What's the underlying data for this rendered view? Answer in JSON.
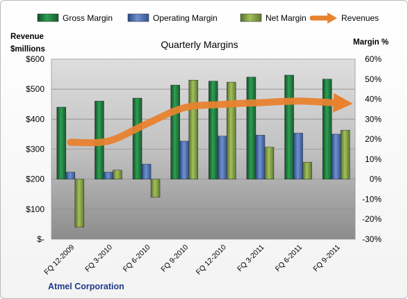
{
  "chart_data": {
    "type": "bar",
    "title": "Quarterly Margins",
    "categories": [
      "FQ 12-2009",
      "FQ 3-2010",
      "FQ 6-2010",
      "FQ 9-2010",
      "FQ 12-2010",
      "FQ 3-2011",
      "FQ 6-2011",
      "FQ 9-2011"
    ],
    "series": [
      {
        "name": "Gross Margin",
        "type": "bar",
        "axis": "right",
        "color": "#1f7a3c",
        "values": [
          36,
          39,
          40.5,
          47,
          49,
          51,
          52,
          50
        ]
      },
      {
        "name": "Operating Margin",
        "type": "bar",
        "axis": "right",
        "color": "#4a6fb0",
        "values": [
          3.5,
          3.5,
          7.5,
          19,
          21.5,
          22,
          23,
          22.5
        ]
      },
      {
        "name": "Net Margin",
        "type": "bar",
        "axis": "right",
        "color": "#7f9b3b",
        "values": [
          -24,
          4.5,
          -9,
          49.5,
          48.5,
          16,
          8.5,
          24.5
        ]
      },
      {
        "name": "Revenues",
        "type": "line",
        "axis": "left",
        "color": "#e8822f",
        "values": [
          323,
          327,
          384,
          438,
          449,
          455,
          460,
          454
        ]
      }
    ],
    "ylabel_left": "Revenue\n$millions",
    "ylabel_right": "Margin %",
    "ylim_left": [
      0,
      600
    ],
    "ylim_right": [
      -30,
      60
    ],
    "yticks_left": [
      "$-",
      "$100",
      "$200",
      "$300",
      "$400",
      "$500",
      "$600"
    ],
    "yticks_right": [
      "-30%",
      "-20%",
      "-10%",
      "0%",
      "10%",
      "20%",
      "30%",
      "40%",
      "50%",
      "60%"
    ],
    "legend_position": "top",
    "grid": true,
    "source_label": "Atmel Corporation"
  },
  "legend": [
    {
      "label": "Gross Margin",
      "color": "#1f7a3c",
      "kind": "box"
    },
    {
      "label": "Operating Margin",
      "color": "#4a6fb0",
      "kind": "box"
    },
    {
      "label": "Net Margin",
      "color": "#7f9b3b",
      "kind": "box"
    },
    {
      "label": "Revenues",
      "color": "#e8822f",
      "kind": "arrow"
    }
  ],
  "left_axis_title": [
    "Revenue",
    "$millions"
  ],
  "right_axis_title": "Margin %"
}
